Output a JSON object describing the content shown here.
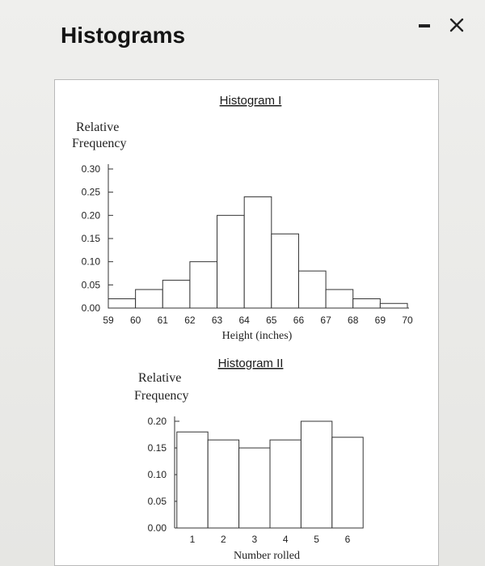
{
  "window": {
    "title": "Histograms",
    "minimize_icon": "minimize-icon",
    "close_icon": "close-icon"
  },
  "chart_data": [
    {
      "type": "bar",
      "title": "Histogram I",
      "xlabel": "Height (inches)",
      "ylabel_line1": "Relative",
      "ylabel_line2": "Frequency",
      "x_ticks": [
        "59",
        "60",
        "61",
        "62",
        "63",
        "64",
        "65",
        "66",
        "67",
        "68",
        "69",
        "70"
      ],
      "y_ticks": [
        "0.00",
        "0.05",
        "0.10",
        "0.15",
        "0.20",
        "0.25",
        "0.30"
      ],
      "bin_edges": [
        59,
        60,
        61,
        62,
        63,
        64,
        65,
        66,
        67,
        68,
        69,
        70
      ],
      "values": [
        0.02,
        0.04,
        0.06,
        0.1,
        0.2,
        0.24,
        0.16,
        0.08,
        0.04,
        0.02,
        0.01
      ],
      "ylim": [
        0,
        0.3
      ]
    },
    {
      "type": "bar",
      "title": "Histogram II",
      "xlabel": "Number rolled",
      "ylabel_line1": "Relative",
      "ylabel_line2": "Frequency",
      "x_ticks": [
        "1",
        "2",
        "3",
        "4",
        "5",
        "6"
      ],
      "y_ticks": [
        "0.00",
        "0.05",
        "0.10",
        "0.15",
        "0.20"
      ],
      "categories": [
        "1",
        "2",
        "3",
        "4",
        "5",
        "6"
      ],
      "values": [
        0.18,
        0.165,
        0.15,
        0.165,
        0.2,
        0.17
      ],
      "ylim": [
        0,
        0.2
      ]
    }
  ]
}
